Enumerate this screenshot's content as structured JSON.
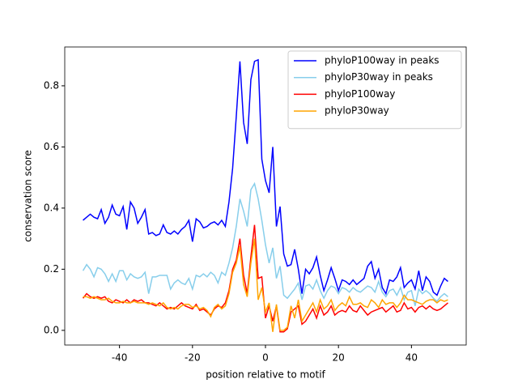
{
  "chart_data": {
    "type": "line",
    "xlabel": "position relative to motif",
    "ylabel": "conservation score",
    "x": [
      -50,
      -49,
      -48,
      -47,
      -46,
      -45,
      -44,
      -43,
      -42,
      -41,
      -40,
      -39,
      -38,
      -37,
      -36,
      -35,
      -34,
      -33,
      -32,
      -31,
      -30,
      -29,
      -28,
      -27,
      -26,
      -25,
      -24,
      -23,
      -22,
      -21,
      -20,
      -19,
      -18,
      -17,
      -16,
      -15,
      -14,
      -13,
      -12,
      -11,
      -10,
      -9,
      -8,
      -7,
      -6,
      -5,
      -4,
      -3,
      -2,
      -1,
      0,
      1,
      2,
      3,
      4,
      5,
      6,
      7,
      8,
      9,
      10,
      11,
      12,
      13,
      14,
      15,
      16,
      17,
      18,
      19,
      20,
      21,
      22,
      23,
      24,
      25,
      26,
      27,
      28,
      29,
      30,
      31,
      32,
      33,
      34,
      35,
      36,
      37,
      38,
      39,
      40,
      41,
      42,
      43,
      44,
      45,
      46,
      47,
      48,
      49,
      50
    ],
    "series": [
      {
        "name": "phyloP100way in peaks",
        "color": "#0000ff",
        "values": [
          0.36,
          0.37,
          0.38,
          0.37,
          0.365,
          0.395,
          0.35,
          0.37,
          0.41,
          0.38,
          0.375,
          0.405,
          0.33,
          0.42,
          0.4,
          0.35,
          0.37,
          0.395,
          0.315,
          0.32,
          0.31,
          0.315,
          0.345,
          0.32,
          0.315,
          0.325,
          0.315,
          0.33,
          0.34,
          0.36,
          0.29,
          0.365,
          0.355,
          0.335,
          0.34,
          0.35,
          0.355,
          0.345,
          0.36,
          0.34,
          0.42,
          0.53,
          0.7,
          0.88,
          0.68,
          0.61,
          0.82,
          0.88,
          0.885,
          0.56,
          0.49,
          0.45,
          0.6,
          0.34,
          0.405,
          0.25,
          0.21,
          0.215,
          0.265,
          0.2,
          0.12,
          0.2,
          0.185,
          0.205,
          0.24,
          0.18,
          0.13,
          0.165,
          0.205,
          0.17,
          0.13,
          0.165,
          0.16,
          0.15,
          0.165,
          0.15,
          0.16,
          0.17,
          0.21,
          0.225,
          0.17,
          0.2,
          0.14,
          0.12,
          0.165,
          0.16,
          0.175,
          0.205,
          0.14,
          0.155,
          0.165,
          0.135,
          0.195,
          0.13,
          0.175,
          0.16,
          0.125,
          0.115,
          0.145,
          0.17,
          0.16
        ]
      },
      {
        "name": "phyloP30way in peaks",
        "color": "#87ceeb",
        "values": [
          0.195,
          0.215,
          0.2,
          0.175,
          0.205,
          0.2,
          0.185,
          0.16,
          0.185,
          0.16,
          0.195,
          0.195,
          0.165,
          0.185,
          0.175,
          0.17,
          0.175,
          0.19,
          0.12,
          0.175,
          0.175,
          0.18,
          0.18,
          0.18,
          0.135,
          0.155,
          0.165,
          0.155,
          0.15,
          0.17,
          0.135,
          0.18,
          0.175,
          0.185,
          0.175,
          0.19,
          0.18,
          0.155,
          0.19,
          0.18,
          0.22,
          0.27,
          0.34,
          0.43,
          0.39,
          0.34,
          0.46,
          0.48,
          0.43,
          0.36,
          0.28,
          0.22,
          0.27,
          0.17,
          0.21,
          0.115,
          0.105,
          0.12,
          0.135,
          0.155,
          0.1,
          0.145,
          0.15,
          0.135,
          0.165,
          0.13,
          0.105,
          0.13,
          0.145,
          0.14,
          0.12,
          0.14,
          0.135,
          0.125,
          0.14,
          0.13,
          0.125,
          0.135,
          0.145,
          0.14,
          0.125,
          0.16,
          0.125,
          0.11,
          0.13,
          0.135,
          0.115,
          0.14,
          0.1,
          0.125,
          0.13,
          0.08,
          0.135,
          0.12,
          0.13,
          0.12,
          0.105,
          0.095,
          0.11,
          0.12,
          0.11
        ]
      },
      {
        "name": "phyloP100way",
        "color": "#ff0000",
        "values": [
          0.105,
          0.12,
          0.11,
          0.105,
          0.11,
          0.105,
          0.11,
          0.095,
          0.09,
          0.1,
          0.095,
          0.09,
          0.1,
          0.09,
          0.1,
          0.095,
          0.1,
          0.09,
          0.09,
          0.085,
          0.08,
          0.09,
          0.08,
          0.07,
          0.075,
          0.07,
          0.08,
          0.09,
          0.08,
          0.075,
          0.07,
          0.085,
          0.065,
          0.07,
          0.06,
          0.05,
          0.07,
          0.08,
          0.075,
          0.09,
          0.13,
          0.2,
          0.23,
          0.3,
          0.18,
          0.12,
          0.24,
          0.345,
          0.17,
          0.175,
          0.04,
          0.08,
          0.03,
          0.08,
          -0.005,
          -0.005,
          0.005,
          0.06,
          0.07,
          0.08,
          0.02,
          0.03,
          0.05,
          0.07,
          0.04,
          0.08,
          0.05,
          0.06,
          0.08,
          0.05,
          0.06,
          0.065,
          0.06,
          0.08,
          0.065,
          0.06,
          0.08,
          0.065,
          0.05,
          0.06,
          0.065,
          0.07,
          0.075,
          0.06,
          0.07,
          0.08,
          0.06,
          0.065,
          0.09,
          0.07,
          0.075,
          0.06,
          0.075,
          0.08,
          0.07,
          0.08,
          0.07,
          0.065,
          0.07,
          0.08,
          0.09
        ]
      },
      {
        "name": "phyloP30way",
        "color": "#ffa500",
        "values": [
          0.11,
          0.11,
          0.105,
          0.11,
          0.105,
          0.1,
          0.1,
          0.105,
          0.095,
          0.09,
          0.09,
          0.095,
          0.09,
          0.09,
          0.095,
          0.09,
          0.09,
          0.09,
          0.085,
          0.09,
          0.085,
          0.08,
          0.09,
          0.075,
          0.07,
          0.075,
          0.07,
          0.08,
          0.085,
          0.085,
          0.075,
          0.08,
          0.07,
          0.075,
          0.065,
          0.045,
          0.075,
          0.085,
          0.07,
          0.08,
          0.12,
          0.19,
          0.22,
          0.275,
          0.15,
          0.11,
          0.22,
          0.3,
          0.1,
          0.14,
          0.06,
          0.09,
          -0.005,
          0.085,
          0.0,
          0.0,
          0.01,
          0.08,
          0.04,
          0.1,
          0.03,
          0.05,
          0.07,
          0.09,
          0.06,
          0.1,
          0.07,
          0.08,
          0.1,
          0.065,
          0.08,
          0.09,
          0.08,
          0.11,
          0.085,
          0.085,
          0.09,
          0.08,
          0.075,
          0.1,
          0.09,
          0.075,
          0.1,
          0.085,
          0.09,
          0.09,
          0.075,
          0.09,
          0.115,
          0.1,
          0.1,
          0.095,
          0.09,
          0.085,
          0.095,
          0.1,
          0.1,
          0.09,
          0.1,
          0.095,
          0.1
        ]
      }
    ],
    "xlim": [
      -55,
      55
    ],
    "xticks": [
      -40,
      -20,
      0,
      20,
      40
    ],
    "ylim": [
      -0.048,
      0.927
    ],
    "yticks": [
      {
        "value": 0,
        "label": "0.0"
      },
      0.2,
      0.4,
      0.6,
      0.8
    ],
    "legend": "upper right"
  }
}
